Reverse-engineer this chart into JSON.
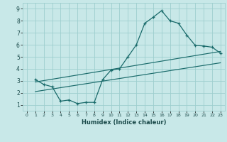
{
  "xlabel": "Humidex (Indice chaleur)",
  "xlim": [
    -0.5,
    23.5
  ],
  "ylim": [
    0.5,
    9.5
  ],
  "xticks": [
    0,
    1,
    2,
    3,
    4,
    5,
    6,
    7,
    8,
    9,
    10,
    11,
    12,
    13,
    14,
    15,
    16,
    17,
    18,
    19,
    20,
    21,
    22,
    23
  ],
  "yticks": [
    1,
    2,
    3,
    4,
    5,
    6,
    7,
    8,
    9
  ],
  "bg_color": "#c8e8e8",
  "grid_color": "#9ecece",
  "line_color": "#1a6b6b",
  "line1_x": [
    1,
    2,
    3,
    4,
    5,
    6,
    7,
    8,
    9,
    10,
    11,
    12,
    13,
    14,
    15,
    16,
    17,
    18,
    19,
    20,
    21,
    22,
    23
  ],
  "line1_y": [
    3.1,
    2.7,
    2.5,
    1.3,
    1.4,
    1.1,
    1.2,
    1.2,
    3.1,
    3.9,
    4.0,
    5.0,
    6.0,
    7.8,
    8.3,
    8.85,
    8.0,
    7.8,
    6.8,
    5.95,
    5.9,
    5.8,
    5.3
  ],
  "line2_x": [
    1,
    23
  ],
  "line2_y": [
    2.9,
    5.45
  ],
  "line3_x": [
    1,
    23
  ],
  "line3_y": [
    2.1,
    4.5
  ]
}
